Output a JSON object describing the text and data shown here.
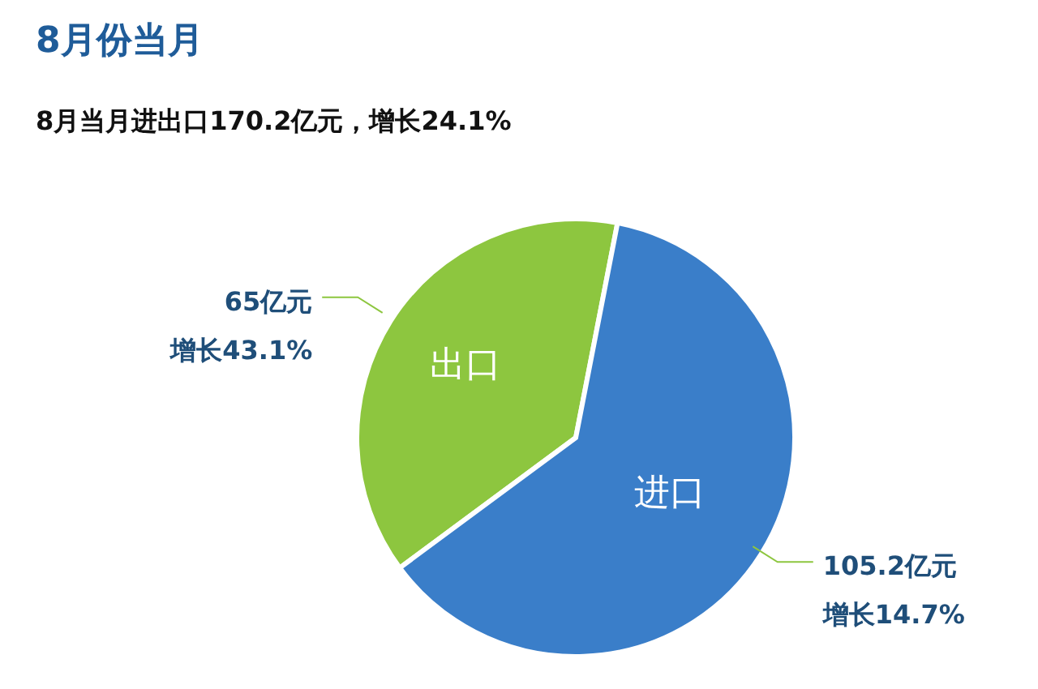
{
  "chart_data": {
    "type": "pie",
    "title": "8月份当月",
    "subtitle": "8月当月进出口170.2亿元，增长24.1%",
    "categories": [
      "出口",
      "进口"
    ],
    "values": [
      65,
      105.2
    ],
    "colors": [
      "#8dc63f",
      "#3a7ec9"
    ],
    "value_labels": [
      "65亿元",
      "105.2亿元"
    ],
    "annotations": [
      {
        "text": "增长43.1%",
        "x": "出口"
      },
      {
        "text": "增长14.7%",
        "x": "进口"
      }
    ],
    "legend": false
  }
}
